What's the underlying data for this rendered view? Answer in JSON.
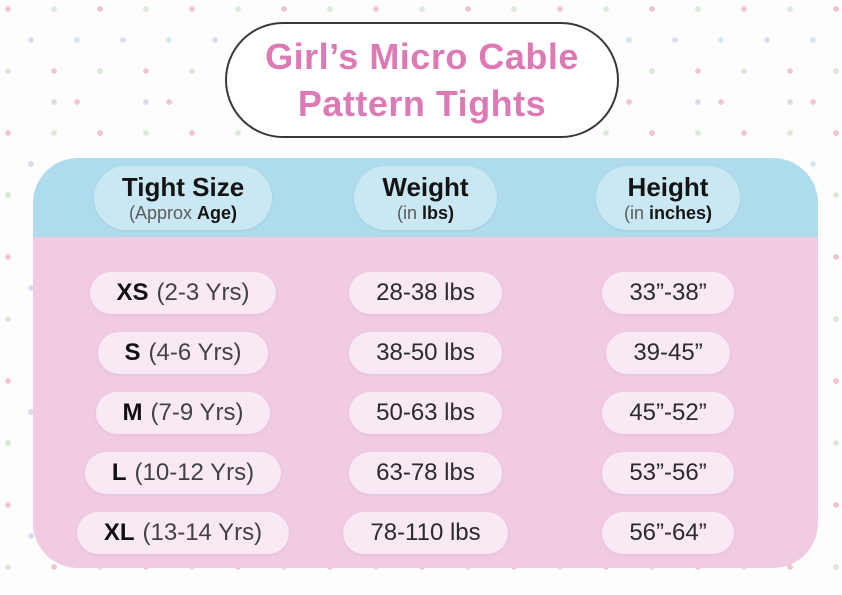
{
  "title": {
    "line1": "Girl’s Micro Cable",
    "line2": "Pattern Tights"
  },
  "colors": {
    "title_text": "#dd7ab5",
    "title_bubble_border": "#383838",
    "header_bg": "#aedcec",
    "header_pill_bg": "#c9e8f3",
    "body_bg": "#f0cbe2",
    "row_pill_bg": "#f9e9f4",
    "text_dark": "#141414",
    "dot_pink": "#f3c4d3",
    "dot_green": "#dbead7",
    "dot_lavender": "#d9dbee",
    "dot_blue": "#d5e6f0"
  },
  "table": {
    "headers": [
      {
        "title": "Tight Size",
        "sub_light": "(Approx",
        "sub_bold": "Age)"
      },
      {
        "title": "Weight",
        "sub_light": "(in",
        "sub_bold": "lbs)"
      },
      {
        "title": "Height",
        "sub_light": "(in",
        "sub_bold": "inches)"
      }
    ],
    "rows": [
      {
        "size": "XS",
        "age": "(2-3 Yrs)",
        "weight": "28-38 lbs",
        "height": "33”-38”"
      },
      {
        "size": "S",
        "age": "(4-6 Yrs)",
        "weight": "38-50 lbs",
        "height": "39-45”"
      },
      {
        "size": "M",
        "age": "(7-9 Yrs)",
        "weight": "50-63 lbs",
        "height": "45”-52”"
      },
      {
        "size": "L",
        "age": "(10-12 Yrs)",
        "weight": "63-78 lbs",
        "height": "53”-56”"
      },
      {
        "size": "XL",
        "age": "(13-14 Yrs)",
        "weight": "78-110 lbs",
        "height": "56”-64”"
      }
    ]
  },
  "chart_data": {
    "type": "table",
    "title": "Girl’s Micro Cable Pattern Tights",
    "columns": [
      "Tight Size (Approx Age)",
      "Weight (in lbs)",
      "Height (in inches)"
    ],
    "rows": [
      [
        "XS (2-3 Yrs)",
        "28-38 lbs",
        "33”-38”"
      ],
      [
        "S (4-6 Yrs)",
        "38-50 lbs",
        "39-45”"
      ],
      [
        "M (7-9 Yrs)",
        "50-63 lbs",
        "45”-52”"
      ],
      [
        "L (10-12 Yrs)",
        "63-78 lbs",
        "53”-56”"
      ],
      [
        "XL (13-14 Yrs)",
        "78-110 lbs",
        "56”-64”"
      ]
    ]
  }
}
